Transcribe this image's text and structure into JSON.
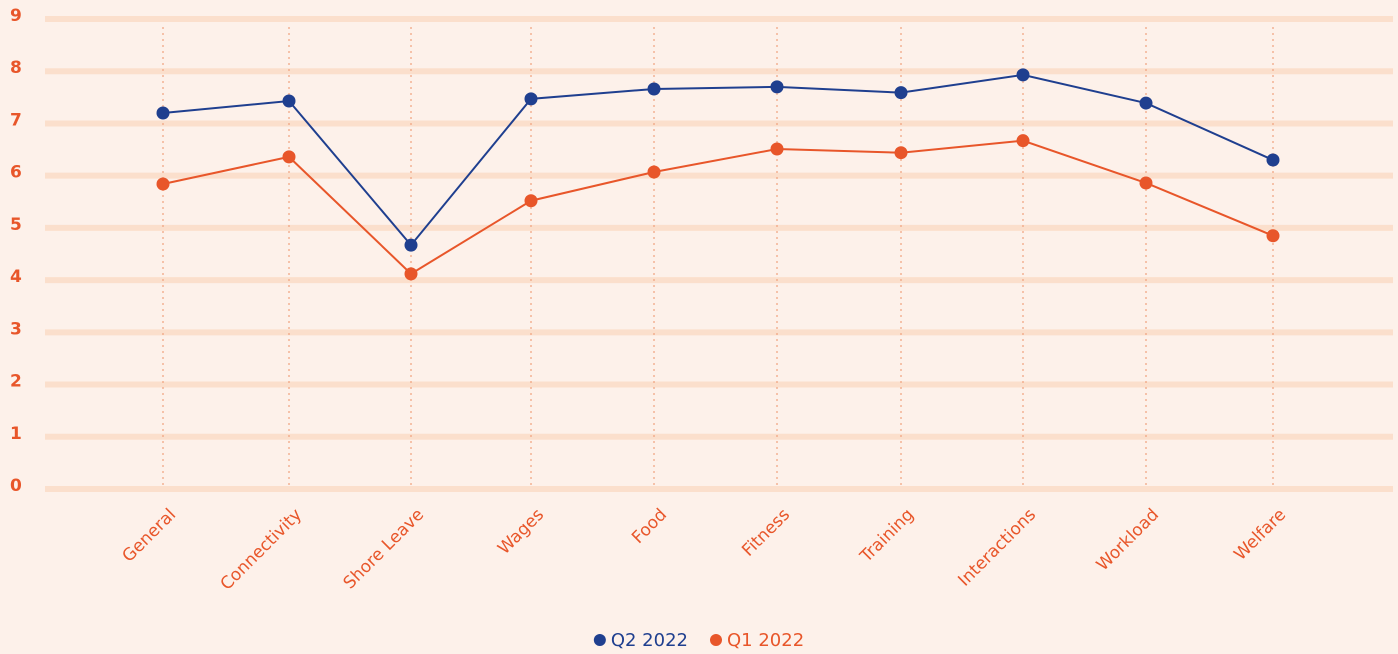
{
  "chart_data": {
    "type": "line",
    "categories": [
      "General",
      "Connectivity",
      "Shore Leave",
      "Wages",
      "Food",
      "Fitness",
      "Training",
      "Interactions",
      "Workload",
      "Welfare"
    ],
    "series": [
      {
        "name": "Q2 2022",
        "color": "#1f3f8f",
        "values": [
          7.2,
          7.43,
          4.67,
          7.47,
          7.66,
          7.7,
          7.59,
          7.93,
          7.39,
          6.3
        ]
      },
      {
        "name": "Q1 2022",
        "color": "#e8562a",
        "values": [
          5.84,
          6.36,
          4.12,
          5.52,
          6.07,
          6.51,
          6.44,
          6.67,
          5.86,
          4.85
        ]
      }
    ],
    "ylim": [
      0,
      9
    ],
    "yticks": [
      0,
      1,
      2,
      3,
      4,
      5,
      6,
      7,
      8,
      9
    ],
    "grid": true,
    "legend": "bottom"
  }
}
